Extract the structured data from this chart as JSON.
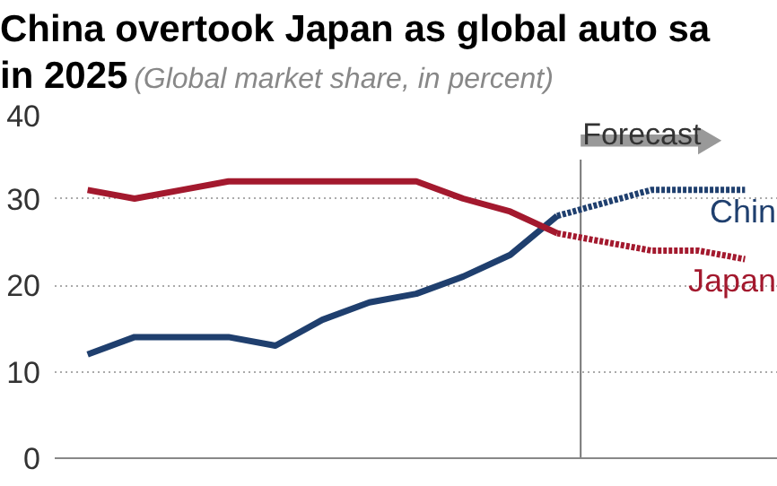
{
  "chart_data": {
    "type": "line",
    "title": "China overtook Japan as global auto sa",
    "subtitle": "in 2025",
    "legend_title": "(Global market share, in percent)",
    "categories": [
      null,
      null,
      null,
      null,
      null,
      null,
      null,
      null,
      null,
      null,
      null,
      null,
      null,
      null,
      null
    ],
    "series": [
      {
        "name": "Chin",
        "color": "#1f3f6e",
        "values": [
          12,
          14,
          14,
          14,
          13,
          16,
          18,
          19,
          21,
          23.5,
          28,
          null,
          null,
          null,
          null
        ]
      },
      {
        "name": "Japan",
        "color": "#a3192e",
        "values": [
          31,
          30,
          31,
          32,
          32,
          32,
          32,
          32,
          30,
          28.5,
          26,
          null,
          null,
          null,
          null
        ]
      },
      {
        "color": "#1f3f6e",
        "line_style": "dashed",
        "values": [
          null,
          null,
          null,
          null,
          null,
          null,
          null,
          null,
          null,
          null,
          28,
          29.5,
          31,
          31,
          31
        ]
      },
      {
        "color": "#a3192e",
        "line_style": "dashed",
        "values": [
          null,
          null,
          null,
          null,
          null,
          null,
          null,
          null,
          null,
          null,
          26,
          25,
          24,
          24,
          23
        ]
      }
    ],
    "ylim": [
      0,
      40
    ],
    "yticks": [
      0,
      10,
      20,
      30,
      40
    ],
    "grid": "y",
    "tick_labels": "y",
    "marker": "none",
    "line_style": "solid",
    "annotations": [
      "Forecast"
    ]
  }
}
